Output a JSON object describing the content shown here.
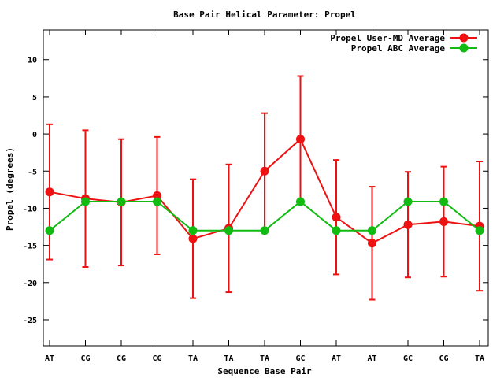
{
  "chart_data": {
    "type": "line",
    "title": "Base Pair Helical Parameter: Propel",
    "xlabel": "Sequence Base Pair",
    "ylabel": "Propel (degrees)",
    "categories": [
      "AT",
      "CG",
      "CG",
      "CG",
      "TA",
      "TA",
      "TA",
      "GC",
      "AT",
      "AT",
      "GC",
      "CG",
      "TA"
    ],
    "ylim": [
      -28.5,
      14
    ],
    "yticks": [
      10,
      5,
      0,
      -5,
      -10,
      -15,
      -20,
      -25
    ],
    "legend_position": "top-right",
    "series": [
      {
        "name": "Propel User-MD Average",
        "color": "#ee1111",
        "values": [
          -7.8,
          -8.7,
          -9.2,
          -8.3,
          -14.1,
          -12.7,
          -5.0,
          -0.7,
          -11.2,
          -14.7,
          -12.2,
          -11.8,
          -12.4
        ],
        "error": [
          9.1,
          9.2,
          8.5,
          7.9,
          8.0,
          8.6,
          7.8,
          8.5,
          7.7,
          7.6,
          7.1,
          7.4,
          8.7
        ]
      },
      {
        "name": "Propel ABC Average",
        "color": "#11bb11",
        "values": [
          -13.0,
          -9.1,
          -9.1,
          -9.1,
          -13.0,
          -13.0,
          -13.0,
          -9.1,
          -13.0,
          -13.0,
          -9.1,
          -9.1,
          -13.0
        ]
      }
    ]
  }
}
